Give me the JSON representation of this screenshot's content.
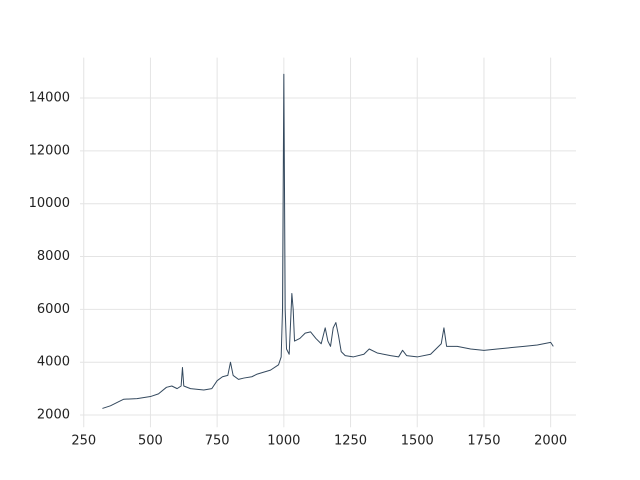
{
  "chart_data": {
    "type": "line",
    "x": [
      320,
      350,
      380,
      400,
      450,
      500,
      530,
      560,
      580,
      600,
      615,
      620,
      625,
      650,
      700,
      730,
      750,
      770,
      790,
      800,
      810,
      830,
      850,
      880,
      900,
      950,
      980,
      990,
      995,
      1000,
      1005,
      1010,
      1020,
      1030,
      1035,
      1040,
      1060,
      1080,
      1100,
      1120,
      1140,
      1155,
      1165,
      1175,
      1185,
      1195,
      1205,
      1215,
      1230,
      1260,
      1300,
      1320,
      1350,
      1400,
      1430,
      1445,
      1460,
      1500,
      1550,
      1580,
      1590,
      1600,
      1610,
      1650,
      1700,
      1750,
      1800,
      1850,
      1900,
      1950,
      2000,
      2010
    ],
    "values": [
      2250,
      2350,
      2500,
      2600,
      2620,
      2700,
      2800,
      3050,
      3100,
      3000,
      3100,
      3800,
      3100,
      3000,
      2950,
      3000,
      3300,
      3450,
      3500,
      4000,
      3500,
      3350,
      3400,
      3450,
      3550,
      3700,
      3900,
      4200,
      6000,
      14900,
      6000,
      4500,
      4300,
      6600,
      6000,
      4800,
      4900,
      5100,
      5150,
      4900,
      4700,
      5300,
      4800,
      4600,
      5300,
      5500,
      5000,
      4400,
      4250,
      4200,
      4300,
      4500,
      4350,
      4250,
      4200,
      4450,
      4250,
      4200,
      4300,
      4600,
      4700,
      5300,
      4600,
      4600,
      4500,
      4450,
      4500,
      4550,
      4600,
      4650,
      4750,
      4600
    ],
    "color": "#34495e",
    "xlim": [
      236,
      2095
    ],
    "ylim": [
      1540,
      15530
    ],
    "xticks": [
      250,
      500,
      750,
      1000,
      1250,
      1500,
      1750,
      2000
    ],
    "yticks": [
      2000,
      4000,
      6000,
      8000,
      10000,
      12000,
      14000
    ],
    "grid": true
  }
}
